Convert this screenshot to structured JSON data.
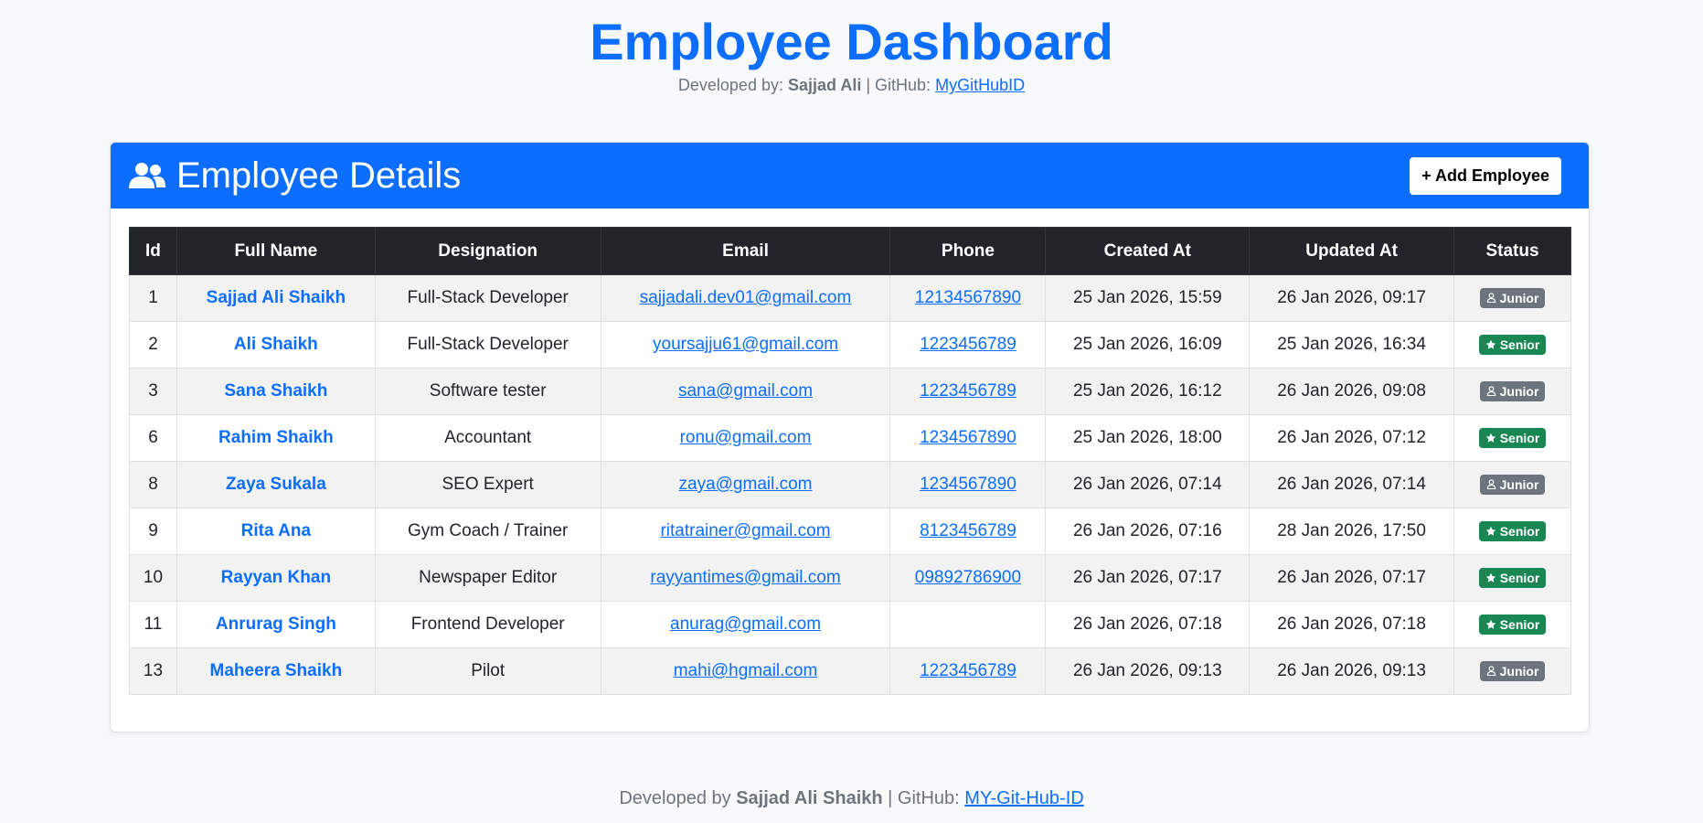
{
  "header": {
    "title": "Employee Dashboard",
    "developed_by_label": "Developed by:",
    "developer_name": "Sajjad Ali",
    "github_label": "| GitHub:",
    "github_link": "MyGitHubID"
  },
  "card": {
    "title": "Employee Details",
    "add_button": "+ Add Employee",
    "icon": "users-icon"
  },
  "table": {
    "columns": [
      "Id",
      "Full Name",
      "Designation",
      "Email",
      "Phone",
      "Created At",
      "Updated At",
      "Status"
    ],
    "rows": [
      {
        "id": "1",
        "name": "Sajjad Ali Shaikh",
        "designation": "Full-Stack Developer",
        "email": "sajjadali.dev01@gmail.com",
        "phone": "12134567890",
        "created": "25 Jan 2026, 15:59",
        "updated": "26 Jan 2026, 09:17",
        "status": "Junior"
      },
      {
        "id": "2",
        "name": "Ali Shaikh",
        "designation": "Full-Stack Developer",
        "email": "yoursajju61@gmail.com",
        "phone": "1223456789",
        "created": "25 Jan 2026, 16:09",
        "updated": "25 Jan 2026, 16:34",
        "status": "Senior"
      },
      {
        "id": "3",
        "name": "Sana Shaikh",
        "designation": "Software tester",
        "email": "sana@gmail.com",
        "phone": "1223456789",
        "created": "25 Jan 2026, 16:12",
        "updated": "26 Jan 2026, 09:08",
        "status": "Junior"
      },
      {
        "id": "6",
        "name": "Rahim Shaikh",
        "designation": "Accountant",
        "email": "ronu@gmail.com",
        "phone": "1234567890",
        "created": "25 Jan 2026, 18:00",
        "updated": "26 Jan 2026, 07:12",
        "status": "Senior"
      },
      {
        "id": "8",
        "name": "Zaya Sukala",
        "designation": "SEO Expert",
        "email": "zaya@gmail.com",
        "phone": "1234567890",
        "created": "26 Jan 2026, 07:14",
        "updated": "26 Jan 2026, 07:14",
        "status": "Junior"
      },
      {
        "id": "9",
        "name": "Rita Ana",
        "designation": "Gym Coach / Trainer",
        "email": "ritatrainer@gmail.com",
        "phone": "8123456789",
        "created": "26 Jan 2026, 07:16",
        "updated": "28 Jan 2026, 17:50",
        "status": "Senior"
      },
      {
        "id": "10",
        "name": "Rayyan Khan",
        "designation": "Newspaper Editor",
        "email": "rayyantimes@gmail.com",
        "phone": "09892786900",
        "created": "26 Jan 2026, 07:17",
        "updated": "26 Jan 2026, 07:17",
        "status": "Senior"
      },
      {
        "id": "11",
        "name": "Anrurag Singh",
        "designation": "Frontend Developer",
        "email": "anurag@gmail.com",
        "phone": "",
        "created": "26 Jan 2026, 07:18",
        "updated": "26 Jan 2026, 07:18",
        "status": "Senior"
      },
      {
        "id": "13",
        "name": "Maheera Shaikh",
        "designation": "Pilot",
        "email": "mahi@hgmail.com",
        "phone": "1223456789",
        "created": "26 Jan 2026, 09:13",
        "updated": "26 Jan 2026, 09:13",
        "status": "Junior"
      }
    ]
  },
  "footer": {
    "developed_by_label": "Developed by",
    "developer_name": "Sajjad Ali Shaikh",
    "github_label": "| GitHub:",
    "github_link": "MY-Git-Hub-ID"
  },
  "colors": {
    "primary": "#0d6efd",
    "senior_badge": "#198754",
    "junior_badge": "#6c757d",
    "table_header": "#212529"
  }
}
